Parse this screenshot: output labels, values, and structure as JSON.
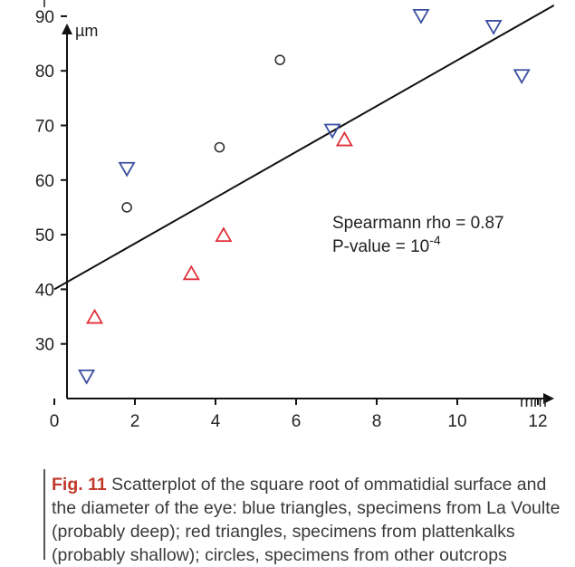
{
  "chart_data": {
    "type": "scatter",
    "x_unit": "mm",
    "y_unit": "µm",
    "xlim": [
      0,
      12.4
    ],
    "ylim": [
      20,
      94
    ],
    "x_ticks": [
      0,
      2,
      4,
      6,
      8,
      10,
      12
    ],
    "y_ticks": [
      30,
      40,
      50,
      60,
      70,
      80,
      90
    ],
    "grid": false,
    "series": [
      {
        "marker": "triangle-down",
        "color": "#3b4fa0",
        "points": [
          [
            0.8,
            24
          ],
          [
            1.8,
            62
          ],
          [
            6.9,
            69
          ],
          [
            9.1,
            90
          ],
          [
            10.9,
            88
          ],
          [
            11.6,
            79
          ]
        ]
      },
      {
        "marker": "triangle-up",
        "color": "#e0303a",
        "points": [
          [
            1.0,
            35
          ],
          [
            3.4,
            43
          ],
          [
            4.2,
            50
          ],
          [
            7.2,
            67.5
          ]
        ]
      },
      {
        "marker": "circle",
        "color": "#333333",
        "points": [
          [
            1.8,
            55
          ],
          [
            4.1,
            66
          ],
          [
            5.6,
            82
          ]
        ]
      }
    ],
    "trend_line": {
      "x": [
        0,
        12.4
      ],
      "y": [
        40,
        92
      ]
    },
    "annotation_line1": "Spearmann rho = 0.87",
    "annotation_line2_base": "P-value = 10",
    "annotation_line2_exp": "-4"
  },
  "caption": {
    "label": "Fig. 11",
    "text": "Scatterplot of the square root of ommatidial surface and the diameter of the eye: blue triangles, specimens from La Voulte (probably deep); red triangles, specimens from plattenkalks (probably shallow); circles, specimens from other outcrops"
  }
}
